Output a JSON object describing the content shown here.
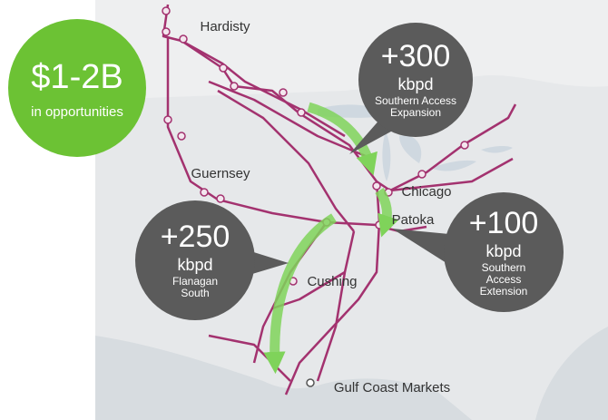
{
  "badge": {
    "amount": "$1-2B",
    "caption": "in opportunities"
  },
  "places": [
    "Hardisty",
    "Guernsey",
    "Chicago",
    "Patoka",
    "Cushing",
    "Gulf Coast Markets"
  ],
  "callouts": [
    {
      "amount": "+300",
      "unit": "kbpd",
      "name_lines": [
        "Southern Access",
        "Expansion"
      ]
    },
    {
      "amount": "+250",
      "unit": "kbpd",
      "name_lines": [
        "Flanagan",
        "South"
      ]
    },
    {
      "amount": "+100",
      "unit": "kbpd",
      "name_lines": [
        "Southern",
        "Access",
        "Extension"
      ]
    }
  ]
}
